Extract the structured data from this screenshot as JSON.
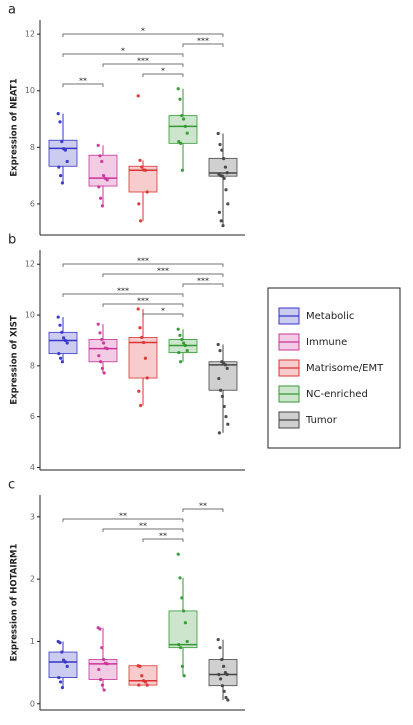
{
  "legend": {
    "names": [
      "Metabolic",
      "Immune",
      "Matrisome/EMT",
      "NC-enriched",
      "Tumor"
    ],
    "colors": [
      "#3535c8",
      "#cc3399",
      "#dd3333",
      "#339933",
      "#444444"
    ]
  },
  "chart_data": [
    {
      "type": "box",
      "label": "a",
      "ylabel": "Expression of NEAT1",
      "ylim": [
        4.9,
        12.5
      ],
      "yticks": [
        6,
        8,
        10,
        12
      ],
      "boxes": [
        {
          "min": 6.74,
          "q1": 7.33,
          "median": 7.96,
          "q3": 8.25,
          "max": 9.19,
          "points": [
            9.19,
            8.9,
            8.2,
            7.95,
            7.9,
            7.5,
            7.3,
            7.0,
            6.74
          ]
        },
        {
          "min": 5.93,
          "q1": 6.63,
          "median": 6.91,
          "q3": 7.72,
          "max": 8.07,
          "points": [
            8.07,
            7.7,
            7.5,
            7.0,
            6.9,
            6.85,
            6.6,
            6.2,
            5.93
          ]
        },
        {
          "min": 5.4,
          "q1": 6.42,
          "median": 7.19,
          "q3": 7.33,
          "max": 7.54,
          "points": [
            9.82,
            7.54,
            7.3,
            7.2,
            7.19,
            6.42,
            6.0,
            5.4
          ]
        },
        {
          "min": 7.19,
          "q1": 8.14,
          "median": 8.74,
          "q3": 9.12,
          "max": 10.07,
          "points": [
            10.07,
            9.7,
            9.12,
            9.0,
            8.74,
            8.5,
            8.2,
            8.14,
            7.19
          ]
        },
        {
          "min": 5.23,
          "q1": 6.98,
          "median": 7.09,
          "q3": 7.61,
          "max": 8.49,
          "points": [
            8.49,
            8.1,
            7.9,
            7.6,
            7.3,
            7.1,
            7.05,
            7.0,
            6.98,
            6.9,
            6.5,
            6.0,
            5.7,
            5.4,
            5.23
          ]
        }
      ],
      "comparisons": [
        {
          "from": 0,
          "to": 4,
          "label": "*"
        },
        {
          "from": 3,
          "to": 4,
          "label": "***"
        },
        {
          "from": 0,
          "to": 3,
          "label": "*"
        },
        {
          "from": 1,
          "to": 3,
          "label": "***"
        },
        {
          "from": 2,
          "to": 3,
          "label": "*"
        },
        {
          "from": 0,
          "to": 1,
          "label": "**"
        }
      ]
    },
    {
      "type": "box",
      "label": "b",
      "ylabel": "Expression of XIST",
      "ylim": [
        3.9,
        12.56
      ],
      "yticks": [
        4,
        6,
        8,
        10,
        12
      ],
      "boxes": [
        {
          "min": 8.16,
          "q1": 8.48,
          "median": 9.0,
          "q3": 9.32,
          "max": 9.92,
          "points": [
            9.92,
            9.6,
            9.32,
            9.1,
            9.0,
            8.9,
            8.48,
            8.3,
            8.16
          ]
        },
        {
          "min": 7.72,
          "q1": 8.16,
          "median": 8.68,
          "q3": 9.04,
          "max": 9.64,
          "points": [
            9.64,
            9.3,
            9.04,
            8.9,
            8.7,
            8.68,
            8.4,
            8.16,
            7.9,
            7.72
          ]
        },
        {
          "min": 6.44,
          "q1": 7.52,
          "median": 8.92,
          "q3": 9.12,
          "max": 10.24,
          "points": [
            10.24,
            9.5,
            9.12,
            8.92,
            8.3,
            7.52,
            7.0,
            6.44
          ]
        },
        {
          "min": 8.16,
          "q1": 8.52,
          "median": 8.8,
          "q3": 9.04,
          "max": 9.44,
          "points": [
            9.44,
            9.2,
            9.04,
            8.9,
            8.8,
            8.6,
            8.52,
            8.16
          ]
        },
        {
          "min": 5.36,
          "q1": 7.04,
          "median": 8.04,
          "q3": 8.16,
          "max": 8.84,
          "points": [
            8.84,
            8.6,
            8.16,
            8.1,
            8.04,
            7.9,
            7.5,
            7.04,
            6.8,
            6.4,
            6.0,
            5.7,
            5.36
          ]
        }
      ],
      "comparisons": [
        {
          "from": 0,
          "to": 4,
          "label": "***"
        },
        {
          "from": 1,
          "to": 4,
          "label": "***"
        },
        {
          "from": 3,
          "to": 4,
          "label": "***"
        },
        {
          "from": 0,
          "to": 3,
          "label": "***"
        },
        {
          "from": 1,
          "to": 3,
          "label": "***"
        },
        {
          "from": 2,
          "to": 3,
          "label": "*"
        }
      ]
    },
    {
      "type": "box",
      "label": "c",
      "ylabel": "Expression of HOTAIRM1",
      "ylim": [
        -0.1,
        3.35
      ],
      "yticks": [
        0,
        1,
        2,
        3
      ],
      "boxes": [
        {
          "min": 0.26,
          "q1": 0.42,
          "median": 0.67,
          "q3": 0.83,
          "max": 1.0,
          "points": [
            1.0,
            0.98,
            0.83,
            0.7,
            0.67,
            0.6,
            0.42,
            0.35,
            0.26
          ]
        },
        {
          "min": 0.22,
          "q1": 0.39,
          "median": 0.64,
          "q3": 0.71,
          "max": 1.22,
          "points": [
            1.22,
            1.2,
            0.9,
            0.71,
            0.65,
            0.64,
            0.55,
            0.39,
            0.3,
            0.22
          ]
        },
        {
          "min": 0.3,
          "q1": 0.3,
          "median": 0.37,
          "q3": 0.61,
          "max": 0.61,
          "points": [
            0.61,
            0.6,
            0.45,
            0.37,
            0.35,
            0.3,
            0.3
          ]
        },
        {
          "min": 0.45,
          "q1": 0.9,
          "median": 0.95,
          "q3": 1.49,
          "max": 2.02,
          "points": [
            2.4,
            2.02,
            1.7,
            1.49,
            1.3,
            1.0,
            0.95,
            0.9,
            0.6,
            0.45
          ]
        },
        {
          "min": 0.06,
          "q1": 0.29,
          "median": 0.47,
          "q3": 0.71,
          "max": 1.03,
          "points": [
            1.03,
            0.9,
            0.71,
            0.6,
            0.5,
            0.47,
            0.47,
            0.4,
            0.29,
            0.2,
            0.1,
            0.06
          ]
        }
      ],
      "comparisons": [
        {
          "from": 3,
          "to": 4,
          "label": "**"
        },
        {
          "from": 0,
          "to": 3,
          "label": "**"
        },
        {
          "from": 1,
          "to": 3,
          "label": "**"
        },
        {
          "from": 2,
          "to": 3,
          "label": "**"
        }
      ]
    }
  ]
}
